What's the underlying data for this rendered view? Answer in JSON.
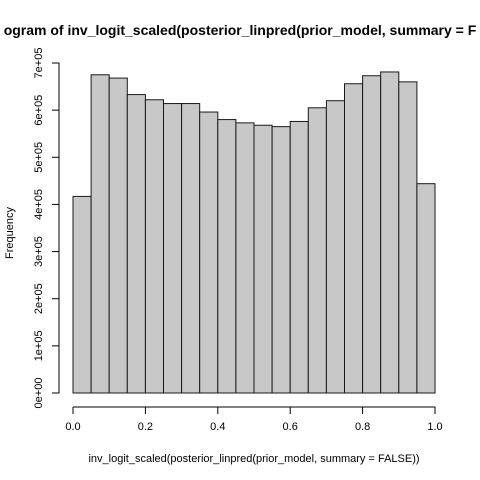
{
  "chart_data": {
    "type": "bar",
    "title": "ogram of inv_logit_scaled(posterior_linpred(prior_model, summary = F",
    "xlabel": "inv_logit_scaled(posterior_linpred(prior_model, summary = FALSE))",
    "ylabel": "Frequency",
    "bin_edges": [
      0.0,
      0.05,
      0.1,
      0.15,
      0.2,
      0.25,
      0.3,
      0.35,
      0.4,
      0.45,
      0.5,
      0.55,
      0.6,
      0.65,
      0.7,
      0.75,
      0.8,
      0.85,
      0.9,
      0.95,
      1.0
    ],
    "values": [
      417000,
      675000,
      668000,
      633000,
      622000,
      614000,
      614000,
      596000,
      580000,
      573000,
      568000,
      565000,
      576000,
      605000,
      620000,
      656000,
      673000,
      681000,
      660000,
      444000
    ],
    "xlim": [
      0.0,
      1.0
    ],
    "ylim": [
      0,
      700000
    ],
    "x_ticks": [
      0.0,
      0.2,
      0.4,
      0.6,
      0.8,
      1.0
    ],
    "x_tick_labels": [
      "0.0",
      "0.2",
      "0.4",
      "0.6",
      "0.8",
      "1.0"
    ],
    "y_ticks": [
      0,
      100000,
      200000,
      300000,
      400000,
      500000,
      600000,
      700000
    ],
    "y_tick_labels": [
      "0e+00",
      "1e+05",
      "2e+05",
      "3e+05",
      "4e+05",
      "5e+05",
      "6e+05",
      "7e+05"
    ],
    "grid": false,
    "bar_color": "#c8c8c8",
    "bar_edge_color": "#1a1a1a"
  }
}
